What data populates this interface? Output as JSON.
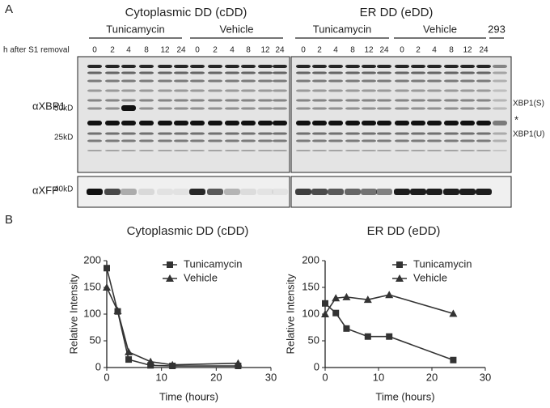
{
  "panel_a": {
    "label": "A",
    "sections": [
      {
        "title": "Cytoplasmic DD (cDD)",
        "groups": [
          {
            "name": "Tunicamycin",
            "lanes": [
              "0",
              "2",
              "4",
              "8",
              "12",
              "24"
            ]
          },
          {
            "name": "Vehicle",
            "lanes": [
              "0",
              "2",
              "4",
              "8",
              "12",
              "24"
            ]
          }
        ]
      },
      {
        "title": "ER DD (eDD)",
        "groups": [
          {
            "name": "Tunicamycin",
            "lanes": [
              "0",
              "2",
              "4",
              "8",
              "12",
              "24"
            ]
          },
          {
            "name": "Vehicle",
            "lanes": [
              "0",
              "2",
              "4",
              "8",
              "12",
              "24"
            ]
          },
          {
            "name": "293",
            "lanes": []
          }
        ]
      }
    ],
    "time_label": "h after S1 removal",
    "xbp1_blot": {
      "antibody": "αXBP1",
      "markers": [
        "50kD",
        "25kD"
      ],
      "band_labels": [
        "XBP1(S)",
        "*",
        "XBP1(U)"
      ]
    },
    "xfp_blot": {
      "antibody": "αXFP",
      "markers": [
        "40kD"
      ]
    }
  },
  "panel_b": {
    "label": "B"
  },
  "chart_data": [
    {
      "type": "line",
      "title": "Cytoplasmic DD (cDD)",
      "x_label": "Time (hours)",
      "y_label": "Relative Intensity",
      "x": [
        0,
        2,
        4,
        8,
        12,
        24
      ],
      "series": [
        {
          "name": "Tunicamycin",
          "color": "#333333",
          "marker": "square",
          "values": [
            186,
            105,
            15,
            4,
            3,
            3
          ]
        },
        {
          "name": "Vehicle",
          "color": "#333333",
          "marker": "triangle",
          "values": [
            150,
            106,
            29,
            11,
            5,
            8
          ]
        }
      ],
      "xlim": [
        0,
        30
      ],
      "ylim": [
        0,
        200
      ],
      "xticks": [
        0,
        10,
        20,
        30
      ],
      "yticks": [
        0,
        50,
        100,
        150,
        200
      ],
      "grid": false,
      "legend": "upper right"
    },
    {
      "type": "line",
      "title": "ER DD (eDD)",
      "x_label": "Time (hours)",
      "y_label": "Relative Intensity",
      "x": [
        0,
        2,
        4,
        8,
        12,
        24
      ],
      "series": [
        {
          "name": "Tunicamycin",
          "color": "#333333",
          "marker": "square",
          "values": [
            120,
            102,
            73,
            58,
            58,
            14
          ]
        },
        {
          "name": "Vehicle",
          "color": "#333333",
          "marker": "triangle",
          "values": [
            100,
            130,
            132,
            127,
            136,
            101
          ]
        }
      ],
      "xlim": [
        0,
        30
      ],
      "ylim": [
        0,
        200
      ],
      "xticks": [
        0,
        10,
        20,
        30
      ],
      "yticks": [
        0,
        50,
        100,
        150,
        200
      ],
      "grid": false,
      "legend": "upper right"
    }
  ]
}
